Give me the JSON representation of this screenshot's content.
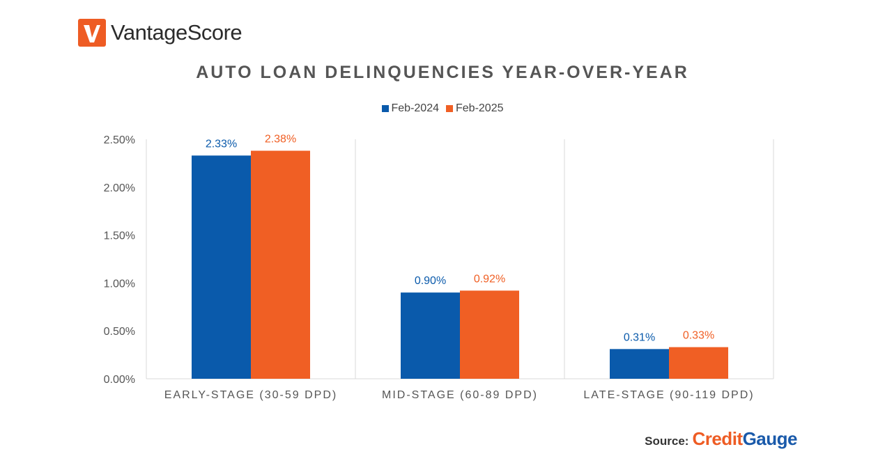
{
  "brand": {
    "name": "VantageScore",
    "logo_icon": "vantagescore-logo-icon",
    "color": "#ee5c24"
  },
  "source": {
    "label": "Source:",
    "brand_part1": "Credit",
    "brand_part2": "Gauge"
  },
  "chart_data": {
    "type": "bar",
    "title": "AUTO LOAN DELINQUENCIES YEAR-OVER-YEAR",
    "xlabel": "",
    "ylabel": "",
    "categories": [
      "EARLY-STAGE (30-59 DPD)",
      "MID-STAGE (60-89 DPD)",
      "LATE-STAGE (90-119 DPD)"
    ],
    "series": [
      {
        "name": "Feb-2024",
        "color": "#0a5aab",
        "values": [
          2.33,
          0.9,
          0.31
        ],
        "labels": [
          "2.33%",
          "0.90%",
          "0.31%"
        ]
      },
      {
        "name": "Feb-2025",
        "color": "#f05f24",
        "values": [
          2.38,
          0.92,
          0.33
        ],
        "labels": [
          "2.38%",
          "0.92%",
          "0.33%"
        ]
      }
    ],
    "ylim": [
      0,
      2.5
    ],
    "yticks": [
      0,
      0.5,
      1.0,
      1.5,
      2.0,
      2.5
    ],
    "ytick_labels": [
      "0.00%",
      "0.50%",
      "1.00%",
      "1.50%",
      "2.00%",
      "2.50%"
    ],
    "grid": "vertical separators between categories",
    "legend": "top-center"
  }
}
